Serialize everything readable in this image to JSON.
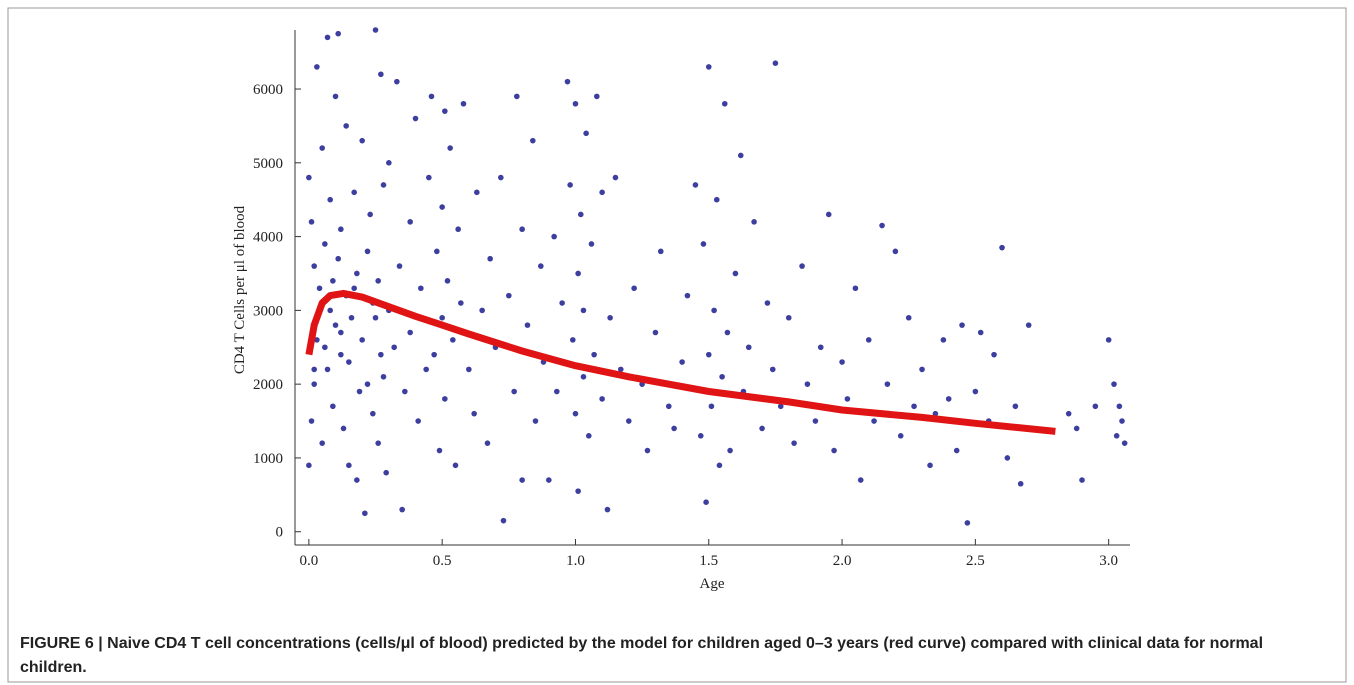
{
  "chart_data": {
    "type": "scatter",
    "xlabel": "Age",
    "ylabel": "CD4 T Cells per μl of blood",
    "xlim": [
      -0.052,
      3.08
    ],
    "ylim": [
      -180,
      6800
    ],
    "xticks": [
      {
        "value": 0,
        "label": "0.0"
      },
      0.5,
      {
        "value": 1,
        "label": "1.0"
      },
      1.5,
      {
        "value": 2,
        "label": "2.0"
      },
      2.5,
      {
        "value": 3,
        "label": "3.0"
      }
    ],
    "yticks": [
      0,
      1000,
      2000,
      3000,
      4000,
      5000,
      6000
    ],
    "series": [
      {
        "type": "scatter",
        "color": "#3d3f9e",
        "x": [
          0.0,
          0.0,
          0.01,
          0.01,
          0.02,
          0.02,
          0.03,
          0.03,
          0.04,
          0.05,
          0.05,
          0.06,
          0.07,
          0.07,
          0.08,
          0.08,
          0.09,
          0.1,
          0.1,
          0.11,
          0.11,
          0.12,
          0.12,
          0.13,
          0.14,
          0.14,
          0.15,
          0.16,
          0.17,
          0.18,
          0.18,
          0.19,
          0.2,
          0.2,
          0.21,
          0.22,
          0.23,
          0.24,
          0.25,
          0.25,
          0.26,
          0.26,
          0.27,
          0.28,
          0.28,
          0.29,
          0.3,
          0.3,
          0.32,
          0.33,
          0.34,
          0.35,
          0.36,
          0.38,
          0.38,
          0.4,
          0.41,
          0.42,
          0.44,
          0.45,
          0.46,
          0.47,
          0.48,
          0.49,
          0.5,
          0.5,
          0.51,
          0.51,
          0.52,
          0.53,
          0.54,
          0.55,
          0.56,
          0.57,
          0.58,
          0.6,
          0.62,
          0.63,
          0.65,
          0.67,
          0.68,
          0.7,
          0.72,
          0.73,
          0.75,
          0.77,
          0.78,
          0.8,
          0.8,
          0.82,
          0.84,
          0.85,
          0.87,
          0.88,
          0.9,
          0.92,
          0.93,
          0.95,
          0.97,
          0.98,
          0.99,
          1.0,
          1.0,
          1.01,
          1.01,
          1.02,
          1.03,
          1.03,
          1.04,
          1.05,
          1.06,
          1.07,
          1.08,
          1.1,
          1.1,
          1.12,
          1.13,
          1.15,
          1.17,
          1.2,
          1.22,
          1.25,
          1.27,
          1.3,
          1.32,
          1.35,
          1.37,
          1.4,
          1.42,
          1.45,
          1.47,
          1.48,
          1.49,
          1.5,
          1.5,
          1.51,
          1.52,
          1.53,
          1.54,
          1.55,
          1.56,
          1.57,
          1.58,
          1.6,
          1.62,
          1.63,
          1.65,
          1.67,
          1.7,
          1.72,
          1.74,
          1.75,
          1.77,
          1.8,
          1.82,
          1.85,
          1.87,
          1.9,
          1.92,
          1.95,
          1.97,
          2.0,
          2.02,
          2.05,
          2.07,
          2.1,
          2.12,
          2.15,
          2.17,
          2.2,
          2.22,
          2.25,
          2.27,
          2.3,
          2.33,
          2.35,
          2.38,
          2.4,
          2.43,
          2.45,
          2.47,
          2.5,
          2.52,
          2.55,
          2.57,
          2.6,
          2.62,
          2.65,
          2.67,
          2.7,
          2.85,
          2.88,
          2.9,
          2.95,
          3.0,
          3.02,
          3.03,
          3.04,
          3.05,
          3.06,
          0.02,
          0.04,
          0.06,
          0.09,
          0.12,
          0.15,
          0.17,
          0.22,
          0.24,
          0.27
        ],
        "values": [
          4800,
          900,
          1500,
          4200,
          3600,
          2000,
          6300,
          2600,
          3300,
          1200,
          5200,
          3900,
          6700,
          2200,
          4500,
          3000,
          1700,
          5900,
          2800,
          3700,
          6750,
          2400,
          4100,
          1400,
          5500,
          3200,
          900,
          2900,
          4600,
          700,
          3500,
          1900,
          5300,
          2600,
          250,
          3800,
          4300,
          1600,
          6800,
          2900,
          3400,
          1200,
          6200,
          2100,
          4700,
          800,
          3000,
          5000,
          2500,
          6100,
          3600,
          300,
          1900,
          4200,
          2700,
          5600,
          1500,
          3300,
          2200,
          4800,
          5900,
          2400,
          3800,
          1100,
          4400,
          2900,
          5700,
          1800,
          3400,
          5200,
          2600,
          900,
          4100,
          3100,
          5800,
          2200,
          1600,
          4600,
          3000,
          1200,
          3700,
          2500,
          4800,
          150,
          3200,
          1900,
          5900,
          700,
          4100,
          2800,
          5300,
          1500,
          3600,
          2300,
          700,
          4000,
          1900,
          3100,
          6100,
          4700,
          2600,
          5800,
          1600,
          3500,
          550,
          4300,
          2100,
          3000,
          5400,
          1300,
          3900,
          2400,
          5900,
          1800,
          4600,
          300,
          2900,
          4800,
          2200,
          1500,
          3300,
          2000,
          1100,
          2700,
          3800,
          1700,
          1400,
          2300,
          3200,
          4700,
          1300,
          3900,
          400,
          2400,
          6300,
          1700,
          3000,
          4500,
          900,
          2100,
          5800,
          2700,
          1100,
          3500,
          5100,
          1900,
          2500,
          4200,
          1400,
          3100,
          2200,
          6350,
          1700,
          2900,
          1200,
          3600,
          2000,
          1500,
          2500,
          4300,
          1100,
          2300,
          1800,
          3300,
          700,
          2600,
          1500,
          4150,
          2000,
          3800,
          1300,
          2900,
          1700,
          2200,
          900,
          1600,
          2600,
          1800,
          1100,
          2800,
          120,
          1900,
          2700,
          1500,
          2400,
          3850,
          1000,
          1700,
          650,
          2800,
          1600,
          1400,
          700,
          1700,
          2600,
          2000,
          1300,
          1700,
          1500,
          1200,
          2200,
          3000,
          2500,
          3400,
          2700,
          2300,
          3300,
          2000,
          3100,
          2400
        ]
      },
      {
        "type": "line",
        "color": "#e01414",
        "x": [
          0,
          0.02,
          0.05,
          0.08,
          0.13,
          0.2,
          0.3,
          0.4,
          0.5,
          0.6,
          0.8,
          1.0,
          1.2,
          1.5,
          1.8,
          2.0,
          2.3,
          2.5,
          2.8
        ],
        "values": [
          2400,
          2800,
          3100,
          3200,
          3230,
          3180,
          3050,
          2920,
          2800,
          2680,
          2450,
          2250,
          2100,
          1900,
          1760,
          1650,
          1550,
          1470,
          1360
        ]
      }
    ]
  },
  "caption": "FIGURE 6 | Naive CD4 T cell concentrations (cells/μl of blood) predicted by the model for children aged 0–3 years (red curve) compared with clinical data for normal children."
}
